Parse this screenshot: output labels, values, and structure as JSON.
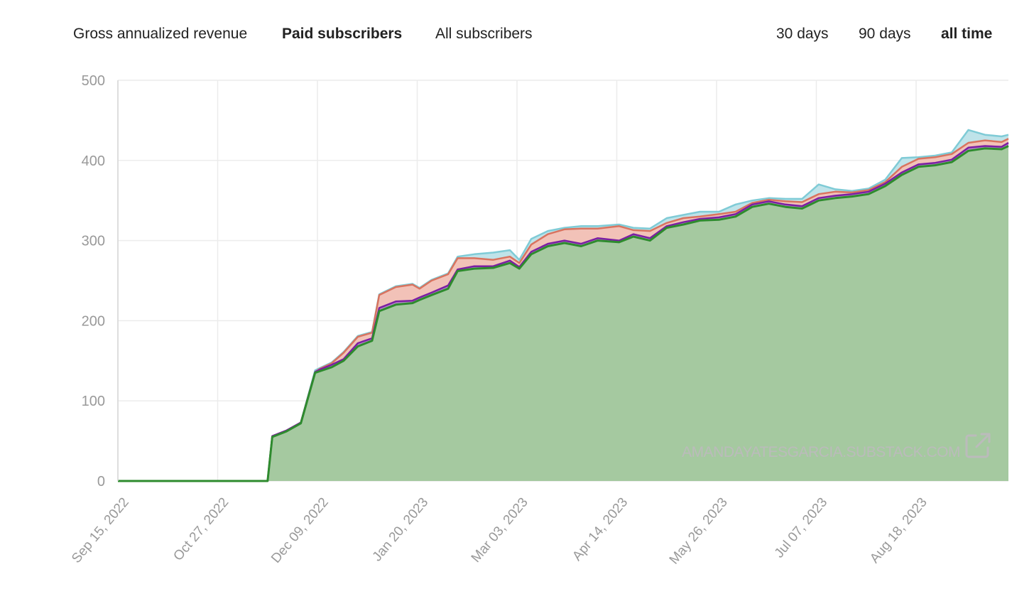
{
  "metric_tabs": [
    {
      "label": "Gross annualized revenue",
      "active": false
    },
    {
      "label": "Paid subscribers",
      "active": true
    },
    {
      "label": "All subscribers",
      "active": false
    }
  ],
  "range_tabs": [
    {
      "label": "30 days",
      "active": false
    },
    {
      "label": "90 days",
      "active": false
    },
    {
      "label": "all time",
      "active": true
    }
  ],
  "watermark": "AMANDAYATESGARCIA.SUBSTACK.COM",
  "colors": {
    "green_line": "#2e8b2e",
    "green_fill": "#a5c9a0",
    "purple": "#7b1fa2",
    "red_line": "#d9735f",
    "red_fill": "#f2c2b8",
    "blue_line": "#7fcbd6",
    "blue_fill": "#bfe3e9",
    "grid": "#ececec",
    "tick": "#999999"
  },
  "chart_data": {
    "type": "area",
    "x_tick_labels": [
      "Sep 15, 2022",
      "Oct 27, 2022",
      "Dec 09, 2022",
      "Jan 20, 2023",
      "Mar 03, 2023",
      "Apr 14, 2023",
      "May 26, 2023",
      "Jul 07, 2023",
      "Aug 18, 2023"
    ],
    "x_range": [
      "2022-09-15",
      "2023-09-28"
    ],
    "ylim": [
      0,
      500
    ],
    "y_ticks": [
      0,
      100,
      200,
      300,
      400,
      500
    ],
    "grid": true,
    "x": [
      "2022-09-15",
      "2022-11-17",
      "2022-11-19",
      "2022-11-25",
      "2022-12-01",
      "2022-12-07",
      "2022-12-09",
      "2022-12-14",
      "2022-12-19",
      "2022-12-25",
      "2022-12-31",
      "2023-01-03",
      "2023-01-10",
      "2023-01-17",
      "2023-01-20",
      "2023-01-25",
      "2023-02-01",
      "2023-02-05",
      "2023-02-12",
      "2023-02-20",
      "2023-02-27",
      "2023-03-03",
      "2023-03-08",
      "2023-03-15",
      "2023-03-22",
      "2023-03-29",
      "2023-04-05",
      "2023-04-14",
      "2023-04-20",
      "2023-04-27",
      "2023-05-04",
      "2023-05-11",
      "2023-05-18",
      "2023-05-26",
      "2023-06-02",
      "2023-06-09",
      "2023-06-16",
      "2023-06-23",
      "2023-06-30",
      "2023-07-07",
      "2023-07-14",
      "2023-07-21",
      "2023-07-28",
      "2023-08-04",
      "2023-08-11",
      "2023-08-18",
      "2023-08-25",
      "2023-09-01",
      "2023-09-08",
      "2023-09-15",
      "2023-09-22",
      "2023-09-28"
    ],
    "series": [
      {
        "values": [
          0,
          0,
          55,
          62,
          72,
          135,
          137,
          142,
          150,
          168,
          175,
          212,
          220,
          222,
          226,
          232,
          240,
          262,
          265,
          266,
          272,
          265,
          283,
          293,
          297,
          293,
          300,
          298,
          305,
          300,
          316,
          320,
          325,
          326,
          330,
          342,
          346,
          342,
          340,
          350,
          353,
          355,
          358,
          368,
          382,
          392,
          394,
          398,
          412,
          415,
          414,
          418
        ]
      },
      {
        "values": [
          0,
          0,
          56,
          63,
          73,
          136,
          139,
          145,
          152,
          172,
          178,
          216,
          224,
          225,
          229,
          235,
          244,
          264,
          268,
          268,
          275,
          267,
          286,
          296,
          300,
          296,
          303,
          300,
          308,
          303,
          318,
          323,
          327,
          329,
          333,
          345,
          349,
          345,
          343,
          353,
          356,
          358,
          361,
          371,
          385,
          395,
          397,
          401,
          416,
          418,
          417,
          422
        ]
      },
      {
        "values": [
          0,
          0,
          56,
          63,
          73,
          136,
          140,
          147,
          160,
          180,
          185,
          232,
          242,
          245,
          240,
          250,
          258,
          278,
          278,
          276,
          280,
          272,
          295,
          308,
          314,
          315,
          315,
          318,
          313,
          312,
          322,
          328,
          330,
          333,
          336,
          347,
          351,
          349,
          348,
          358,
          361,
          360,
          363,
          373,
          392,
          402,
          404,
          408,
          422,
          425,
          423,
          427
        ]
      },
      {
        "values": [
          0,
          0,
          56,
          63,
          73,
          138,
          141,
          148,
          161,
          181,
          186,
          233,
          243,
          246,
          241,
          251,
          259,
          280,
          283,
          285,
          288,
          276,
          302,
          312,
          316,
          318,
          318,
          320,
          316,
          315,
          328,
          332,
          336,
          336,
          345,
          350,
          353,
          352,
          352,
          370,
          364,
          362,
          365,
          376,
          403,
          404,
          406,
          410,
          438,
          432,
          430,
          432
        ]
      }
    ]
  }
}
